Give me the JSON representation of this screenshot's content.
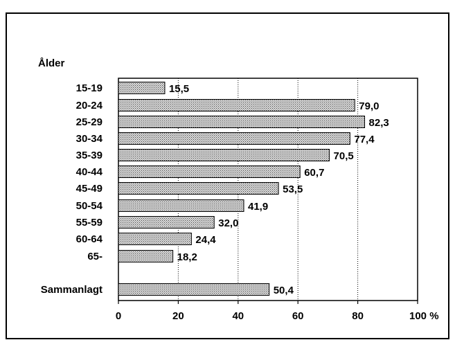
{
  "chart_data": {
    "type": "bar",
    "orientation": "horizontal",
    "ylabel": "Ålder",
    "xlabel": "",
    "title": "",
    "categories": [
      "15-19",
      "20-24",
      "25-29",
      "30-34",
      "35-39",
      "40-44",
      "45-49",
      "50-54",
      "55-59",
      "60-64",
      "65-",
      "Sammanlagt"
    ],
    "values": [
      15.5,
      79.0,
      82.3,
      77.4,
      70.5,
      60.7,
      53.5,
      41.9,
      32.0,
      24.4,
      18.2,
      50.4
    ],
    "value_labels": [
      "15,5",
      "79,0",
      "82,3",
      "77,4",
      "70,5",
      "60,7",
      "53,5",
      "41,9",
      "32,0",
      "24,4",
      "18,2",
      "50,4"
    ],
    "xlim": [
      0,
      100
    ],
    "xticks": [
      0,
      20,
      40,
      60,
      80,
      100
    ],
    "xtick_labels": [
      "0",
      "20",
      "40",
      "60",
      "80",
      "100 %"
    ],
    "grid": "vertical dotted",
    "bar_fill": "#c8c8c8",
    "bar_stroke": "#000000"
  }
}
